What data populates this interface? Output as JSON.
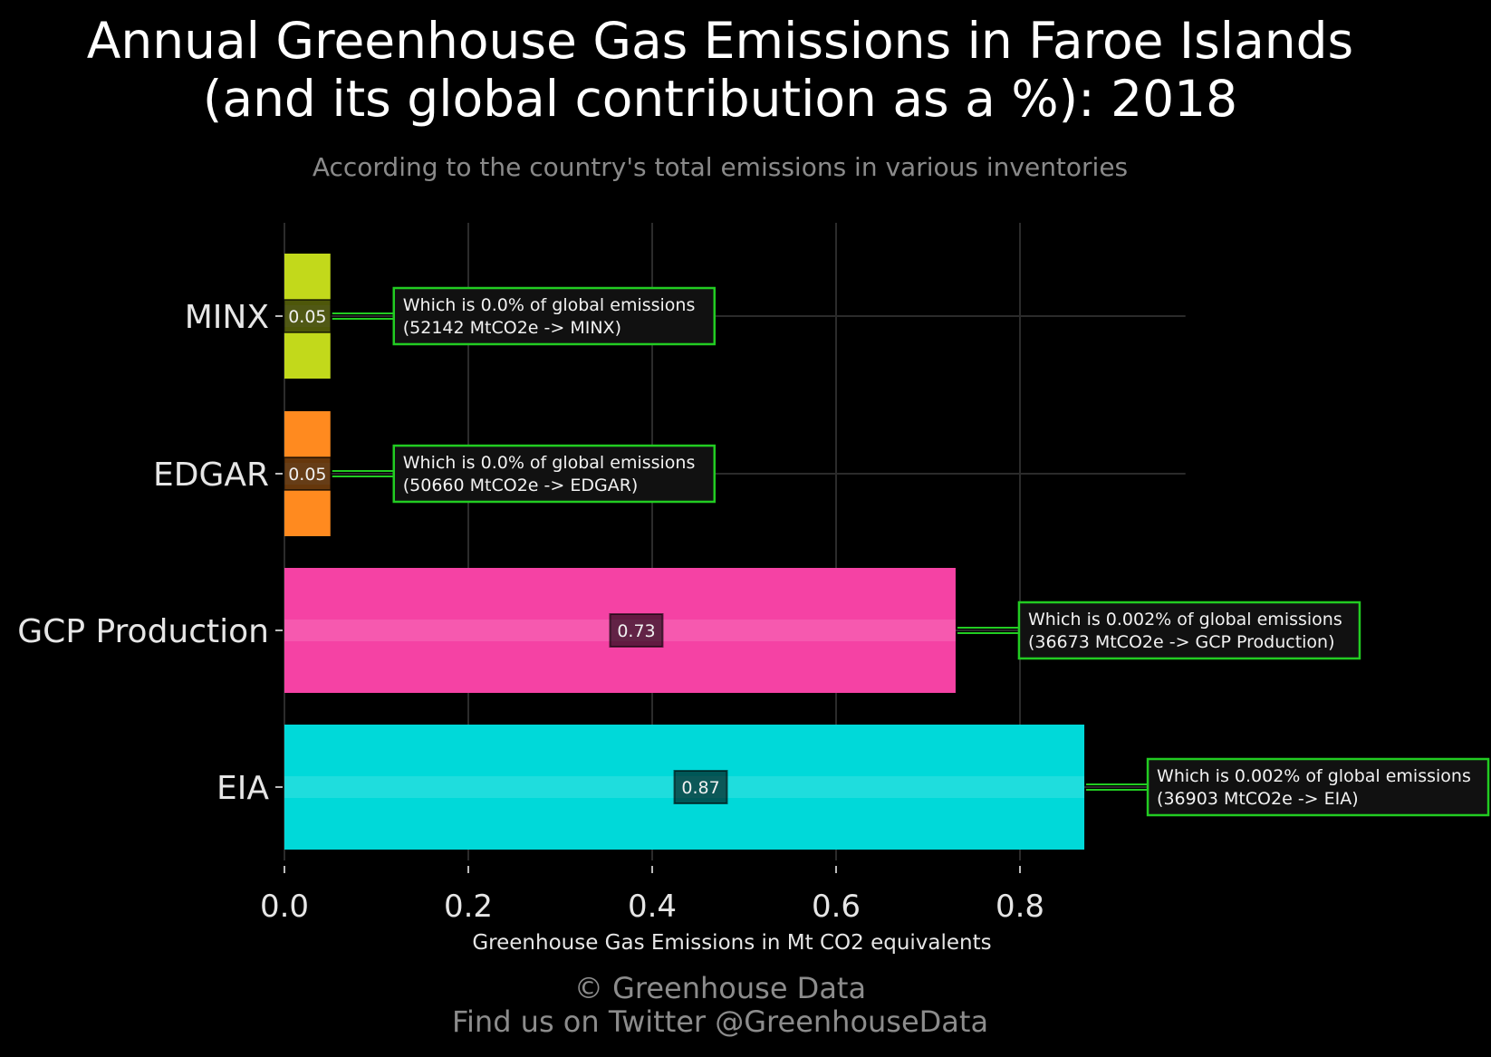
{
  "chart_data": {
    "type": "bar",
    "orientation": "horizontal",
    "title_line1": "Annual Greenhouse Gas Emissions in Faroe Islands",
    "title_line2": "(and its global contribution as a %): 2018",
    "subtitle": "According to the country's total emissions in various inventories",
    "xlabel": "Greenhouse Gas Emissions in Mt CO2 equivalents",
    "ylabel": "",
    "xlim": [
      0,
      0.98
    ],
    "xticks": [
      0.0,
      0.2,
      0.4,
      0.6,
      0.8
    ],
    "xtick_labels": [
      "0.0",
      "0.2",
      "0.4",
      "0.6",
      "0.8"
    ],
    "grid": true,
    "categories": [
      "MINX",
      "EDGAR",
      "GCP Production",
      "EIA"
    ],
    "values": [
      0.05,
      0.05,
      0.73,
      0.87
    ],
    "value_labels": [
      "0.05",
      "0.05",
      "0.73",
      "0.87"
    ],
    "colors": [
      "#c2d91b",
      "#ff8a1f",
      "#f542a4",
      "#00d9d9"
    ],
    "annotations": [
      {
        "line1": "Which is 0.0% of global emissions",
        "line2": "(52142 MtCO2e -> MINX)"
      },
      {
        "line1": "Which is 0.0% of global emissions",
        "line2": "(50660 MtCO2e -> EDGAR)"
      },
      {
        "line1": "Which is 0.002% of global emissions",
        "line2": "(36673 MtCO2e -> GCP Production)"
      },
      {
        "line1": "Which is 0.002% of global emissions",
        "line2": "(36903 MtCO2e -> EIA)"
      }
    ],
    "annotation_border_color": "#22cc22"
  },
  "footer": {
    "line1": "© Greenhouse Data",
    "line2": "Find us on Twitter @GreenhouseData"
  }
}
